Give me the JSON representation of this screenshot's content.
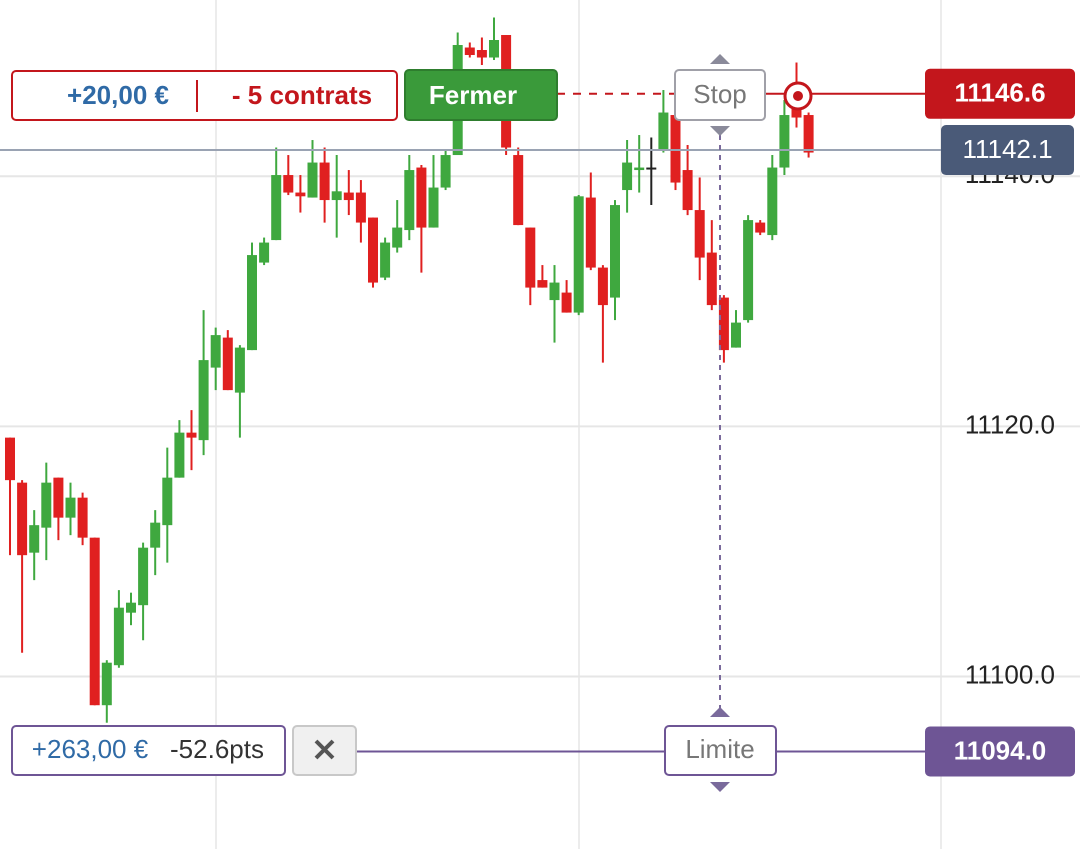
{
  "chart_data": {
    "type": "candlestick",
    "up_color": "#3fa83f",
    "down_color": "#e02020",
    "flat_color": "#222222",
    "open": [
      11119.1,
      11115.5,
      11109.9,
      11111.9,
      11115.9,
      11112.7,
      11114.3,
      11111.1,
      11097.7,
      11100.9,
      11105.1,
      11105.7,
      11110.3,
      11112.1,
      11115.9,
      11119.5,
      11118.9,
      11124.7,
      11127.1,
      11122.7,
      11126.1,
      11133.1,
      11134.9,
      11140.1,
      11138.7,
      11138.3,
      11141.1,
      11138.1,
      11138.7,
      11138.7,
      11136.7,
      11131.9,
      11134.3,
      11135.7,
      11140.7,
      11135.9,
      11139.1,
      11141.7,
      11150.3,
      11150.1,
      11149.5,
      11151.3,
      11141.7,
      11135.9,
      11131.7,
      11130.1,
      11130.7,
      11129.1,
      11138.3,
      11132.7,
      11130.3,
      11138.9,
      11140.5,
      11140.7,
      11142.1,
      11144.9,
      11140.5,
      11137.3,
      11133.9,
      11130.3,
      11126.3,
      11128.5,
      11136.3,
      11135.3,
      11140.7,
      11146.1,
      11144.9
    ],
    "high": [
      11119.1,
      11115.7,
      11113.3,
      11117.1,
      11115.9,
      11115.5,
      11114.7,
      11111.1,
      11101.3,
      11106.9,
      11106.7,
      11110.7,
      11113.3,
      11118.3,
      11120.5,
      11121.3,
      11129.3,
      11127.9,
      11127.7,
      11126.5,
      11134.7,
      11135.1,
      11142.3,
      11141.7,
      11140.1,
      11142.9,
      11142.3,
      11141.7,
      11140.5,
      11139.7,
      11136.7,
      11135.1,
      11138.1,
      11141.7,
      11140.9,
      11141.7,
      11142.1,
      11151.5,
      11150.7,
      11151.1,
      11152.7,
      11151.3,
      11142.3,
      11135.9,
      11132.9,
      11132.9,
      11131.7,
      11138.5,
      11140.3,
      11132.9,
      11138.1,
      11142.9,
      11143.3,
      11143.1,
      11146.9,
      11144.9,
      11142.5,
      11139.9,
      11136.5,
      11130.5,
      11129.3,
      11136.9,
      11136.5,
      11141.7,
      11146.1,
      11149.1,
      11145.1
    ],
    "low": [
      11109.7,
      11101.9,
      11107.7,
      11109.3,
      11110.9,
      11111.3,
      11110.5,
      11097.7,
      11096.3,
      11100.7,
      11104.1,
      11102.9,
      11108.1,
      11109.1,
      11115.9,
      11116.5,
      11117.7,
      11122.9,
      11122.9,
      11119.1,
      11126.1,
      11132.9,
      11134.9,
      11138.5,
      11137.1,
      11138.3,
      11136.3,
      11135.1,
      11136.9,
      11134.7,
      11131.1,
      11131.7,
      11133.9,
      11134.9,
      11132.3,
      11135.9,
      11138.9,
      11141.7,
      11149.5,
      11148.9,
      11149.3,
      11141.7,
      11136.1,
      11129.7,
      11131.1,
      11126.7,
      11129.1,
      11128.9,
      11132.5,
      11125.1,
      11128.5,
      11137.1,
      11138.7,
      11137.7,
      11141.9,
      11138.9,
      11136.9,
      11131.7,
      11129.3,
      11125.1,
      11126.3,
      11128.3,
      11135.3,
      11134.9,
      11140.1,
      11143.9,
      11141.5
    ],
    "close": [
      11115.7,
      11109.7,
      11112.1,
      11115.5,
      11112.7,
      11114.3,
      11111.1,
      11097.7,
      11101.1,
      11105.5,
      11105.9,
      11110.3,
      11112.3,
      11115.9,
      11119.5,
      11119.1,
      11125.3,
      11127.3,
      11122.9,
      11126.3,
      11133.7,
      11134.7,
      11140.1,
      11138.7,
      11138.4,
      11141.1,
      11138.1,
      11138.8,
      11138.1,
      11136.3,
      11131.5,
      11134.7,
      11135.9,
      11140.5,
      11135.9,
      11139.1,
      11141.7,
      11150.5,
      11149.7,
      11149.5,
      11150.9,
      11142.3,
      11136.1,
      11131.1,
      11131.1,
      11131.5,
      11129.1,
      11138.4,
      11132.7,
      11129.7,
      11137.7,
      11141.1,
      11140.7,
      11140.7,
      11145.1,
      11139.5,
      11137.3,
      11133.5,
      11129.7,
      11126.1,
      11128.3,
      11136.5,
      11135.5,
      11140.7,
      11144.9,
      11144.7,
      11141.9
    ],
    "ylim": [
      11086.2,
      11154.1
    ],
    "yticks": [
      {
        "value": 11100,
        "label": "11100.0"
      },
      {
        "value": 11120,
        "label": "11120.0"
      },
      {
        "value": 11140,
        "label": "11140.0"
      }
    ],
    "grid": true,
    "price_lines": [
      {
        "value": 11146.6,
        "color": "#c3161c"
      },
      {
        "value": 11142.1,
        "color": "#4a5a78"
      },
      {
        "value": 11094,
        "label": "11094.0",
        "color": "#6e5595"
      }
    ]
  },
  "position": {
    "pnl": "+20,00 €",
    "quantity": "- 5 contrats",
    "close_button": "Fermer",
    "stop_label": "Stop"
  },
  "limit_order": {
    "pnl": "+263,00 €",
    "distance": "-52.6pts",
    "label": "Limite"
  }
}
